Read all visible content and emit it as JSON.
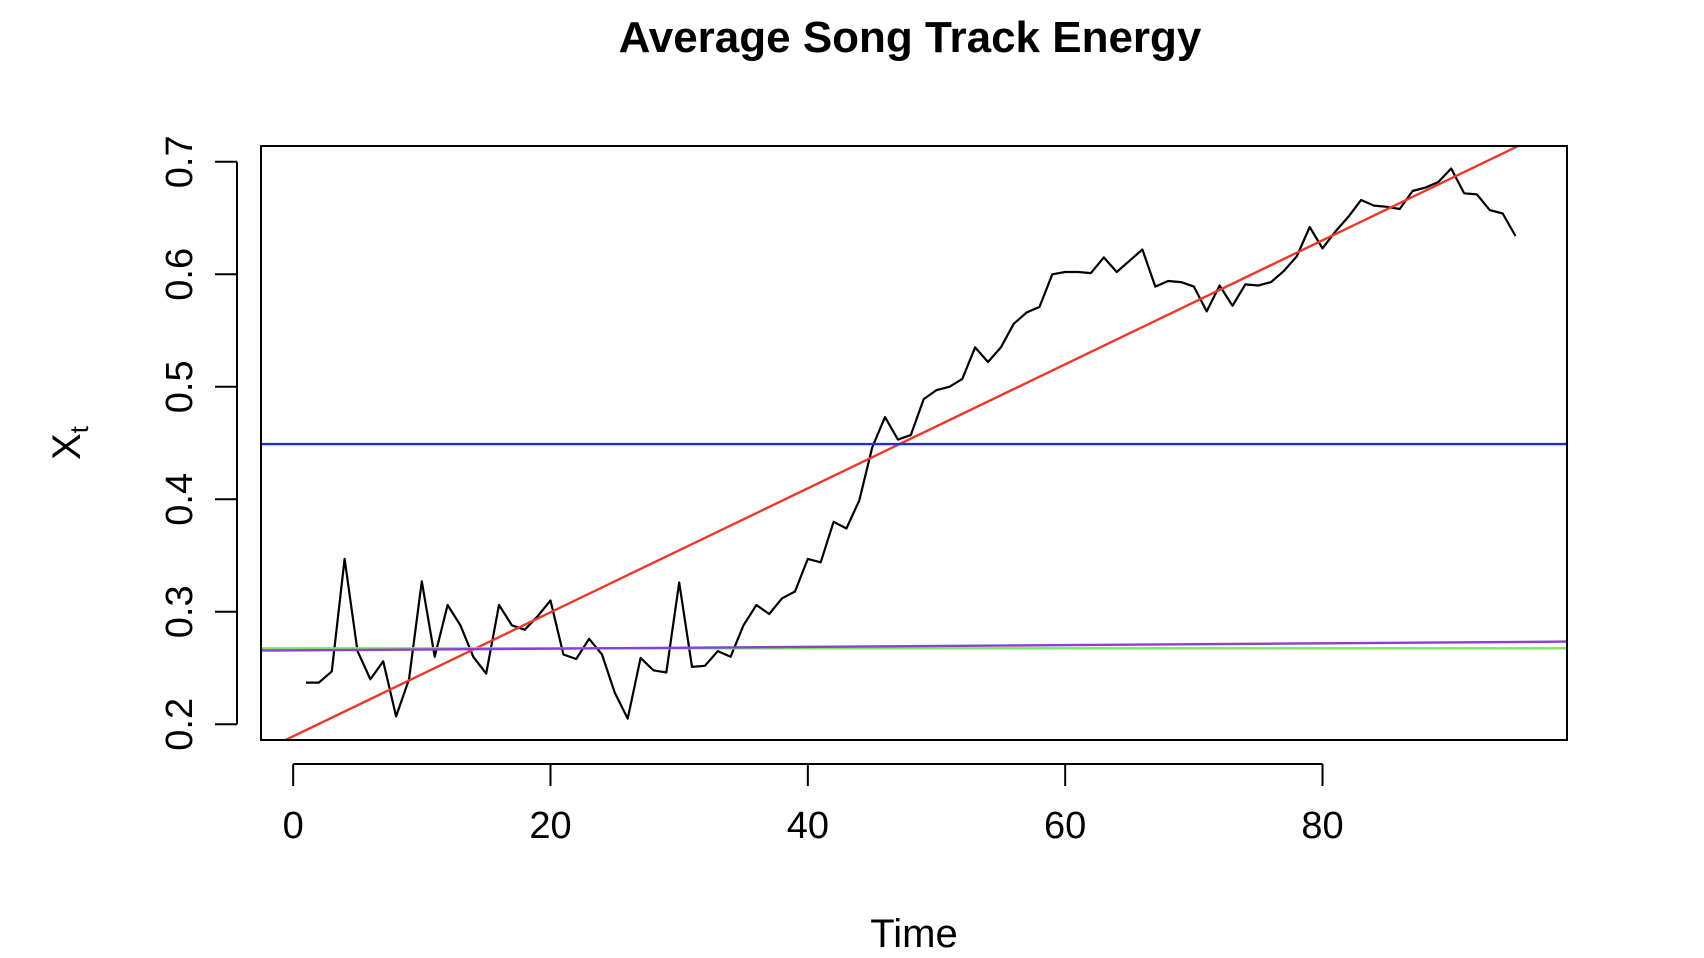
{
  "chart_data": {
    "type": "line",
    "title": "Average Song Track Energy",
    "xlabel": "Time",
    "ylabel_main": "X",
    "ylabel_sub": "t",
    "xlim": [
      -2.5,
      99
    ],
    "ylim": [
      0.186,
      0.714
    ],
    "x_ticks": [
      0,
      20,
      40,
      60,
      80
    ],
    "x_tick_labels": [
      "0",
      "20",
      "40",
      "60",
      "80"
    ],
    "y_ticks": [
      0.2,
      0.3,
      0.4,
      0.5,
      0.6,
      0.7
    ],
    "y_tick_labels": [
      "0.2",
      "0.3",
      "0.4",
      "0.5",
      "0.6",
      "0.7"
    ],
    "grid": false,
    "series": [
      {
        "color": "#000000",
        "kind": "data",
        "x": [
          1,
          2,
          3,
          4,
          5,
          6,
          7,
          8,
          9,
          10,
          11,
          12,
          13,
          14,
          15,
          16,
          17,
          18,
          19,
          20,
          21,
          22,
          23,
          24,
          25,
          26,
          27,
          28,
          29,
          30,
          31,
          32,
          33,
          34,
          35,
          36,
          37,
          38,
          39,
          40,
          41,
          42,
          43,
          44,
          45,
          46,
          47,
          48,
          49,
          50,
          51,
          52,
          53,
          54,
          55,
          56,
          57,
          58,
          59,
          60,
          61,
          62,
          63,
          64,
          65,
          66,
          67,
          68,
          69,
          70,
          71,
          72,
          73,
          74,
          75,
          76,
          77,
          78,
          79,
          80,
          81,
          82,
          83,
          84,
          85,
          86,
          87,
          88,
          89,
          90,
          91,
          92,
          93,
          94,
          95
        ],
        "y": [
          0.237,
          0.237,
          0.247,
          0.347,
          0.265,
          0.24,
          0.256,
          0.207,
          0.24,
          0.327,
          0.26,
          0.306,
          0.288,
          0.26,
          0.245,
          0.306,
          0.288,
          0.284,
          0.296,
          0.31,
          0.262,
          0.258,
          0.276,
          0.262,
          0.228,
          0.205,
          0.259,
          0.248,
          0.246,
          0.326,
          0.251,
          0.252,
          0.265,
          0.26,
          0.288,
          0.306,
          0.298,
          0.312,
          0.318,
          0.347,
          0.344,
          0.38,
          0.374,
          0.399,
          0.446,
          0.473,
          0.453,
          0.457,
          0.489,
          0.497,
          0.5,
          0.507,
          0.535,
          0.522,
          0.535,
          0.556,
          0.566,
          0.571,
          0.6,
          0.602,
          0.602,
          0.601,
          0.615,
          0.602,
          0.612,
          0.622,
          0.589,
          0.594,
          0.593,
          0.589,
          0.567,
          0.59,
          0.572,
          0.591,
          0.59,
          0.593,
          0.603,
          0.616,
          0.642,
          0.623,
          0.638,
          0.651,
          0.666,
          0.661,
          0.66,
          0.658,
          0.674,
          0.677,
          0.682,
          0.694,
          0.672,
          0.671,
          0.657,
          0.654,
          0.634
        ]
      },
      {
        "color": "#e8392a",
        "kind": "line",
        "x": [
          -2.5,
          99
        ],
        "y": [
          0.1755,
          0.7349
        ]
      },
      {
        "color": "#1f2fd1",
        "kind": "line",
        "x": [
          -2.5,
          99
        ],
        "y": [
          0.449,
          0.449
        ]
      },
      {
        "color": "#7ee35a",
        "kind": "line",
        "x": [
          -2.5,
          99
        ],
        "y": [
          0.2675,
          0.2675
        ]
      },
      {
        "color": "#8a3fd6",
        "kind": "line",
        "x": [
          -2.5,
          99
        ],
        "y": [
          0.2655,
          0.2735
        ]
      }
    ]
  }
}
